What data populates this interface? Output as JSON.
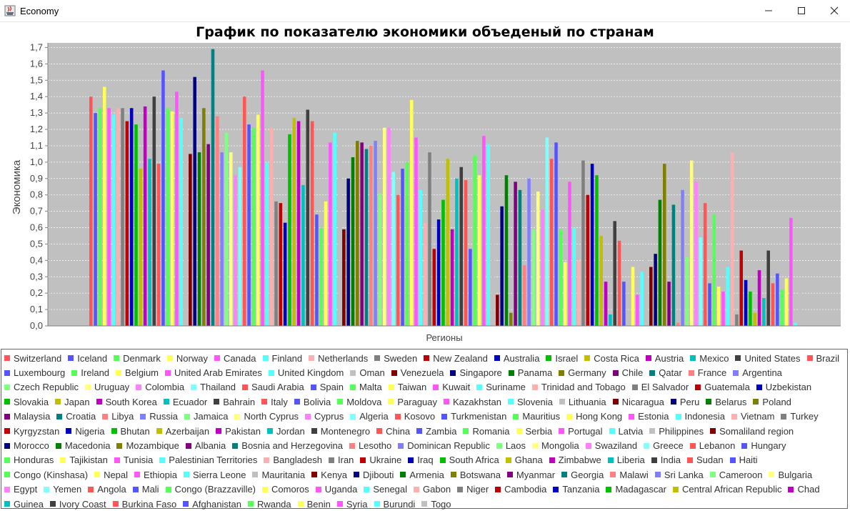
{
  "window": {
    "title": "Economy",
    "icon": "java-app-icon",
    "controls": [
      "minimize-icon",
      "maximize-icon",
      "close-icon"
    ]
  },
  "chart_data": {
    "type": "bar",
    "title": "График по показателю экономики объеденый по странам",
    "xlabel": "Регионы",
    "ylabel": "Экономика",
    "ylim": [
      0,
      1.75
    ],
    "yticks": [
      "0,0",
      "0,1",
      "0,2",
      "0,3",
      "0,4",
      "0,5",
      "0,6",
      "0,7",
      "0,8",
      "0,9",
      "1,0",
      "1,1",
      "1,2",
      "1,3",
      "1,4",
      "1,5",
      "1,6",
      "1,7"
    ],
    "grid": true,
    "legend_position": "bottom",
    "plot_background": "#c0c0c0",
    "categories": [
      "Регионы"
    ],
    "series": [
      {
        "name": "Switzerland",
        "values": [
          1.4
        ],
        "color": "#ff5555"
      },
      {
        "name": "Iceland",
        "values": [
          1.3
        ],
        "color": "#5555ff"
      },
      {
        "name": "Denmark",
        "values": [
          1.33
        ],
        "color": "#55ff55"
      },
      {
        "name": "Norway",
        "values": [
          1.46
        ],
        "color": "#ffff55"
      },
      {
        "name": "Canada",
        "values": [
          1.33
        ],
        "color": "#ff55ff"
      },
      {
        "name": "Finland",
        "values": [
          1.29
        ],
        "color": "#55ffff"
      },
      {
        "name": "Netherlands",
        "values": [
          1.33
        ],
        "color": "#ffafaf"
      },
      {
        "name": "Sweden",
        "values": [
          1.33
        ],
        "color": "#808080"
      },
      {
        "name": "New Zealand",
        "values": [
          1.25
        ],
        "color": "#c00000"
      },
      {
        "name": "Australia",
        "values": [
          1.33
        ],
        "color": "#0000c0"
      },
      {
        "name": "Israel",
        "values": [
          1.23
        ],
        "color": "#00c000"
      },
      {
        "name": "Costa Rica",
        "values": [
          0.96
        ],
        "color": "#c0c000"
      },
      {
        "name": "Austria",
        "values": [
          1.34
        ],
        "color": "#c000c0"
      },
      {
        "name": "Mexico",
        "values": [
          1.02
        ],
        "color": "#00c0c0"
      },
      {
        "name": "United States",
        "values": [
          1.4
        ],
        "color": "#404040"
      },
      {
        "name": "Brazil",
        "values": [
          0.99
        ],
        "color": "#ff5555"
      },
      {
        "name": "Luxembourg",
        "values": [
          1.56
        ],
        "color": "#5555ff"
      },
      {
        "name": "Ireland",
        "values": [
          1.33
        ],
        "color": "#55ff55"
      },
      {
        "name": "Belgium",
        "values": [
          1.31
        ],
        "color": "#ffff55"
      },
      {
        "name": "United Arab Emirates",
        "values": [
          1.43
        ],
        "color": "#ff55ff"
      },
      {
        "name": "United Kingdom",
        "values": [
          1.27
        ],
        "color": "#55ffff"
      },
      {
        "name": "Oman",
        "values": [
          1.36
        ],
        "color": "#c0c0c0"
      },
      {
        "name": "Venezuela",
        "values": [
          1.05
        ],
        "color": "#800000"
      },
      {
        "name": "Singapore",
        "values": [
          1.52
        ],
        "color": "#000080"
      },
      {
        "name": "Panama",
        "values": [
          1.06
        ],
        "color": "#008000"
      },
      {
        "name": "Germany",
        "values": [
          1.33
        ],
        "color": "#808000"
      },
      {
        "name": "Chile",
        "values": [
          1.11
        ],
        "color": "#800080"
      },
      {
        "name": "Qatar",
        "values": [
          1.69
        ],
        "color": "#008080"
      },
      {
        "name": "France",
        "values": [
          1.28
        ],
        "color": "#ff8080"
      },
      {
        "name": "Argentina",
        "values": [
          1.06
        ],
        "color": "#8080ff"
      },
      {
        "name": "Czech Republic",
        "values": [
          1.18
        ],
        "color": "#80ff80"
      },
      {
        "name": "Uruguay",
        "values": [
          1.06
        ],
        "color": "#ffff80"
      },
      {
        "name": "Colombia",
        "values": [
          0.92
        ],
        "color": "#ff80ff"
      },
      {
        "name": "Thailand",
        "values": [
          0.97
        ],
        "color": "#80ffff"
      },
      {
        "name": "Saudi Arabia",
        "values": [
          1.4
        ],
        "color": "#ff5555"
      },
      {
        "name": "Spain",
        "values": [
          1.23
        ],
        "color": "#5555ff"
      },
      {
        "name": "Malta",
        "values": [
          1.21
        ],
        "color": "#55ff55"
      },
      {
        "name": "Taiwan",
        "values": [
          1.29
        ],
        "color": "#ffff55"
      },
      {
        "name": "Kuwait",
        "values": [
          1.56
        ],
        "color": "#ff55ff"
      },
      {
        "name": "Suriname",
        "values": [
          1.0
        ],
        "color": "#55ffff"
      },
      {
        "name": "Trinidad and Tobago",
        "values": [
          1.21
        ],
        "color": "#ffafaf"
      },
      {
        "name": "El Salvador",
        "values": [
          0.76
        ],
        "color": "#808080"
      },
      {
        "name": "Guatemala",
        "values": [
          0.75
        ],
        "color": "#c00000"
      },
      {
        "name": "Uzbekistan",
        "values": [
          0.63
        ],
        "color": "#0000c0"
      },
      {
        "name": "Slovakia",
        "values": [
          1.17
        ],
        "color": "#00c000"
      },
      {
        "name": "Japan",
        "values": [
          1.27
        ],
        "color": "#c0c000"
      },
      {
        "name": "South Korea",
        "values": [
          1.25
        ],
        "color": "#c000c0"
      },
      {
        "name": "Ecuador",
        "values": [
          0.86
        ],
        "color": "#00c0c0"
      },
      {
        "name": "Bahrain",
        "values": [
          1.32
        ],
        "color": "#404040"
      },
      {
        "name": "Italy",
        "values": [
          1.25
        ],
        "color": "#ff5555"
      },
      {
        "name": "Bolivia",
        "values": [
          0.68
        ],
        "color": "#5555ff"
      },
      {
        "name": "Moldova",
        "values": [
          0.6
        ],
        "color": "#55ff55"
      },
      {
        "name": "Paraguay",
        "values": [
          0.76
        ],
        "color": "#ffff55"
      },
      {
        "name": "Kazakhstan",
        "values": [
          1.12
        ],
        "color": "#ff55ff"
      },
      {
        "name": "Slovenia",
        "values": [
          1.18
        ],
        "color": "#55ffff"
      },
      {
        "name": "Lithuania",
        "values": [
          1.15
        ],
        "color": "#c0c0c0"
      },
      {
        "name": "Nicaragua",
        "values": [
          0.59
        ],
        "color": "#800000"
      },
      {
        "name": "Peru",
        "values": [
          0.9
        ],
        "color": "#000080"
      },
      {
        "name": "Belarus",
        "values": [
          1.03
        ],
        "color": "#008000"
      },
      {
        "name": "Poland",
        "values": [
          1.13
        ],
        "color": "#808000"
      },
      {
        "name": "Malaysia",
        "values": [
          1.12
        ],
        "color": "#800080"
      },
      {
        "name": "Croatia",
        "values": [
          1.08
        ],
        "color": "#008080"
      },
      {
        "name": "Libya",
        "values": [
          1.1
        ],
        "color": "#ff8080"
      },
      {
        "name": "Russia",
        "values": [
          1.13
        ],
        "color": "#8080ff"
      },
      {
        "name": "Jamaica",
        "values": [
          0.81
        ],
        "color": "#80ff80"
      },
      {
        "name": "North Cyprus",
        "values": [
          1.21
        ],
        "color": "#ffff80"
      },
      {
        "name": "Cyprus",
        "values": [
          1.21
        ],
        "color": "#ff80ff"
      },
      {
        "name": "Algeria",
        "values": [
          0.94
        ],
        "color": "#80ffff"
      },
      {
        "name": "Kosovo",
        "values": [
          0.8
        ],
        "color": "#ff5555"
      },
      {
        "name": "Turkmenistan",
        "values": [
          0.96
        ],
        "color": "#5555ff"
      },
      {
        "name": "Mauritius",
        "values": [
          1.0
        ],
        "color": "#55ff55"
      },
      {
        "name": "Hong Kong",
        "values": [
          1.38
        ],
        "color": "#ffff55"
      },
      {
        "name": "Estonia",
        "values": [
          1.15
        ],
        "color": "#ff55ff"
      },
      {
        "name": "Indonesia",
        "values": [
          0.83
        ],
        "color": "#55ffff"
      },
      {
        "name": "Vietnam",
        "values": [
          0.63
        ],
        "color": "#ffafaf"
      },
      {
        "name": "Turkey",
        "values": [
          1.06
        ],
        "color": "#808080"
      },
      {
        "name": "Kyrgyzstan",
        "values": [
          0.47
        ],
        "color": "#c00000"
      },
      {
        "name": "Nigeria",
        "values": [
          0.65
        ],
        "color": "#0000c0"
      },
      {
        "name": "Bhutan",
        "values": [
          0.77
        ],
        "color": "#00c000"
      },
      {
        "name": "Azerbaijan",
        "values": [
          1.02
        ],
        "color": "#c0c000"
      },
      {
        "name": "Pakistan",
        "values": [
          0.59
        ],
        "color": "#c000c0"
      },
      {
        "name": "Jordan",
        "values": [
          0.9
        ],
        "color": "#00c0c0"
      },
      {
        "name": "Montenegro",
        "values": [
          0.97
        ],
        "color": "#404040"
      },
      {
        "name": "China",
        "values": [
          0.89
        ],
        "color": "#ff5555"
      },
      {
        "name": "Zambia",
        "values": [
          0.47
        ],
        "color": "#5555ff"
      },
      {
        "name": "Romania",
        "values": [
          1.04
        ],
        "color": "#55ff55"
      },
      {
        "name": "Serbia",
        "values": [
          0.92
        ],
        "color": "#ffff55"
      },
      {
        "name": "Portugal",
        "values": [
          1.16
        ],
        "color": "#ff55ff"
      },
      {
        "name": "Latvia",
        "values": [
          1.11
        ],
        "color": "#55ffff"
      },
      {
        "name": "Philippines",
        "values": [
          0.7
        ],
        "color": "#c0c0c0"
      },
      {
        "name": "Somaliland region",
        "values": [
          0.19
        ],
        "color": "#800000"
      },
      {
        "name": "Morocco",
        "values": [
          0.73
        ],
        "color": "#000080"
      },
      {
        "name": "Macedonia",
        "values": [
          0.92
        ],
        "color": "#008000"
      },
      {
        "name": "Mozambique",
        "values": [
          0.08
        ],
        "color": "#808000"
      },
      {
        "name": "Albania",
        "values": [
          0.88
        ],
        "color": "#800080"
      },
      {
        "name": "Bosnia and Herzegovina",
        "values": [
          0.83
        ],
        "color": "#008080"
      },
      {
        "name": "Lesotho",
        "values": [
          0.37
        ],
        "color": "#ff8080"
      },
      {
        "name": "Dominican Republic",
        "values": [
          0.9
        ],
        "color": "#8080ff"
      },
      {
        "name": "Laos",
        "values": [
          0.59
        ],
        "color": "#80ff80"
      },
      {
        "name": "Mongolia",
        "values": [
          0.82
        ],
        "color": "#ffff80"
      },
      {
        "name": "Swaziland",
        "values": [
          0.71
        ],
        "color": "#ff80ff"
      },
      {
        "name": "Greece",
        "values": [
          1.15
        ],
        "color": "#80ffff"
      },
      {
        "name": "Lebanon",
        "values": [
          1.02
        ],
        "color": "#ff5555"
      },
      {
        "name": "Hungary",
        "values": [
          1.12
        ],
        "color": "#5555ff"
      },
      {
        "name": "Honduras",
        "values": [
          0.59
        ],
        "color": "#55ff55"
      },
      {
        "name": "Tajikistan",
        "values": [
          0.39
        ],
        "color": "#ffff55"
      },
      {
        "name": "Tunisia",
        "values": [
          0.88
        ],
        "color": "#ff55ff"
      },
      {
        "name": "Palestinian Territories",
        "values": [
          0.6
        ],
        "color": "#55ffff"
      },
      {
        "name": "Bangladesh",
        "values": [
          0.4
        ],
        "color": "#ffafaf"
      },
      {
        "name": "Iran",
        "values": [
          1.01
        ],
        "color": "#808080"
      },
      {
        "name": "Ukraine",
        "values": [
          0.8
        ],
        "color": "#c00000"
      },
      {
        "name": "Iraq",
        "values": [
          0.99
        ],
        "color": "#0000c0"
      },
      {
        "name": "South Africa",
        "values": [
          0.92
        ],
        "color": "#00c000"
      },
      {
        "name": "Ghana",
        "values": [
          0.55
        ],
        "color": "#c0c000"
      },
      {
        "name": "Zimbabwe",
        "values": [
          0.27
        ],
        "color": "#c000c0"
      },
      {
        "name": "Liberia",
        "values": [
          0.07
        ],
        "color": "#00c0c0"
      },
      {
        "name": "India",
        "values": [
          0.64
        ],
        "color": "#404040"
      },
      {
        "name": "Sudan",
        "values": [
          0.52
        ],
        "color": "#ff5555"
      },
      {
        "name": "Haiti",
        "values": [
          0.27
        ],
        "color": "#5555ff"
      },
      {
        "name": "Congo (Kinshasa)",
        "values": [
          0.0
        ],
        "color": "#55ff55"
      },
      {
        "name": "Nepal",
        "values": [
          0.36
        ],
        "color": "#ffff55"
      },
      {
        "name": "Ethiopia",
        "values": [
          0.19
        ],
        "color": "#ff55ff"
      },
      {
        "name": "Sierra Leone",
        "values": [
          0.33
        ],
        "color": "#55ffff"
      },
      {
        "name": "Mauritania",
        "values": [
          0.45
        ],
        "color": "#c0c0c0"
      },
      {
        "name": "Kenya",
        "values": [
          0.36
        ],
        "color": "#800000"
      },
      {
        "name": "Djibouti",
        "values": [
          0.44
        ],
        "color": "#000080"
      },
      {
        "name": "Armenia",
        "values": [
          0.77
        ],
        "color": "#008000"
      },
      {
        "name": "Botswana",
        "values": [
          0.99
        ],
        "color": "#808000"
      },
      {
        "name": "Myanmar",
        "values": [
          0.27
        ],
        "color": "#800080"
      },
      {
        "name": "Georgia",
        "values": [
          0.74
        ],
        "color": "#008080"
      },
      {
        "name": "Malawi",
        "values": [
          0.02
        ],
        "color": "#ff8080"
      },
      {
        "name": "Sri Lanka",
        "values": [
          0.83
        ],
        "color": "#8080ff"
      },
      {
        "name": "Cameroon",
        "values": [
          0.42
        ],
        "color": "#80ff80"
      },
      {
        "name": "Bulgaria",
        "values": [
          1.01
        ],
        "color": "#ffff80"
      },
      {
        "name": "Egypt",
        "values": [
          0.88
        ],
        "color": "#ff80ff"
      },
      {
        "name": "Yemen",
        "values": [
          0.54
        ],
        "color": "#80ffff"
      },
      {
        "name": "Angola",
        "values": [
          0.75
        ],
        "color": "#ff5555"
      },
      {
        "name": "Mali",
        "values": [
          0.26
        ],
        "color": "#5555ff"
      },
      {
        "name": "Congo (Brazzaville)",
        "values": [
          0.68
        ],
        "color": "#55ff55"
      },
      {
        "name": "Comoros",
        "values": [
          0.24
        ],
        "color": "#ffff55"
      },
      {
        "name": "Uganda",
        "values": [
          0.21
        ],
        "color": "#ff55ff"
      },
      {
        "name": "Senegal",
        "values": [
          0.36
        ],
        "color": "#55ffff"
      },
      {
        "name": "Gabon",
        "values": [
          1.06
        ],
        "color": "#ffafaf"
      },
      {
        "name": "Niger",
        "values": [
          0.07
        ],
        "color": "#808080"
      },
      {
        "name": "Cambodia",
        "values": [
          0.46
        ],
        "color": "#c00000"
      },
      {
        "name": "Tanzania",
        "values": [
          0.28
        ],
        "color": "#0000c0"
      },
      {
        "name": "Madagascar",
        "values": [
          0.21
        ],
        "color": "#00c000"
      },
      {
        "name": "Central African Republic",
        "values": [
          0.08
        ],
        "color": "#c0c000"
      },
      {
        "name": "Chad",
        "values": [
          0.34
        ],
        "color": "#c000c0"
      },
      {
        "name": "Guinea",
        "values": [
          0.17
        ],
        "color": "#00c0c0"
      },
      {
        "name": "Ivory Coast",
        "values": [
          0.46
        ],
        "color": "#404040"
      },
      {
        "name": "Burkina Faso",
        "values": [
          0.26
        ],
        "color": "#ff5555"
      },
      {
        "name": "Afghanistan",
        "values": [
          0.32
        ],
        "color": "#5555ff"
      },
      {
        "name": "Rwanda",
        "values": [
          0.22
        ],
        "color": "#55ff55"
      },
      {
        "name": "Benin",
        "values": [
          0.29
        ],
        "color": "#ffff55"
      },
      {
        "name": "Syria",
        "values": [
          0.66
        ],
        "color": "#ff55ff"
      },
      {
        "name": "Burundi",
        "values": [
          0.02
        ],
        "color": "#55ffff"
      },
      {
        "name": "Togo",
        "values": [
          0.21
        ],
        "color": "#c0c0c0"
      }
    ]
  }
}
